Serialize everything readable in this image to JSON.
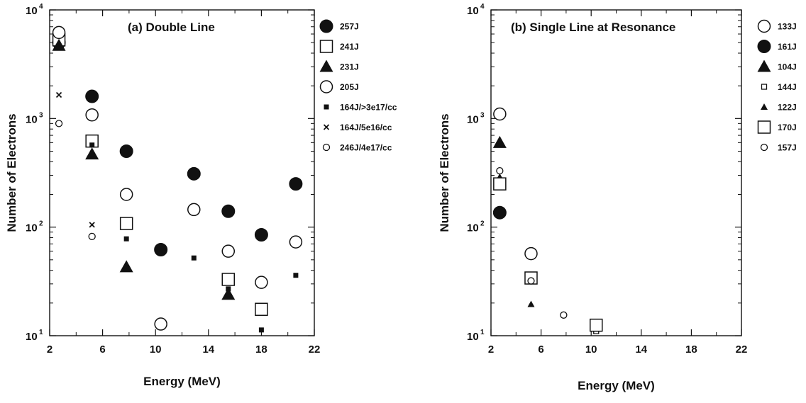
{
  "chart_data": [
    {
      "type": "scatter",
      "title": "(a) Double Line",
      "xlabel": "Energy (MeV)",
      "ylabel": "Number of Electrons",
      "xlim": [
        2,
        22
      ],
      "ylim": [
        10,
        10000
      ],
      "yscale": "log",
      "xticks": [
        "2",
        "6",
        "10",
        "14",
        "18",
        "22"
      ],
      "yticks": [
        {
          "base": "10",
          "exp": "1"
        },
        {
          "base": "10",
          "exp": "2"
        },
        {
          "base": "10",
          "exp": "3"
        },
        {
          "base": "10",
          "exp": "4"
        }
      ],
      "grid": false,
      "legend_position": "right",
      "series": [
        {
          "name": "257J",
          "marker": "filled-circle",
          "points": [
            [
              2.7,
              5000
            ],
            [
              5.2,
              1600
            ],
            [
              7.8,
              500
            ],
            [
              10.4,
              62
            ],
            [
              12.9,
              310
            ],
            [
              15.5,
              140
            ],
            [
              18.0,
              85
            ],
            [
              20.6,
              250
            ]
          ]
        },
        {
          "name": "241J",
          "marker": "open-square",
          "points": [
            [
              2.7,
              5300
            ],
            [
              5.2,
              620
            ],
            [
              7.8,
              108
            ],
            [
              15.5,
              33
            ],
            [
              18.0,
              17.5
            ]
          ]
        },
        {
          "name": "231J",
          "marker": "filled-triangle",
          "points": [
            [
              2.7,
              4700
            ],
            [
              5.2,
              470
            ],
            [
              7.8,
              43
            ],
            [
              15.5,
              24
            ]
          ]
        },
        {
          "name": "205J",
          "marker": "open-circle",
          "points": [
            [
              2.7,
              6200
            ],
            [
              5.2,
              1080
            ],
            [
              7.8,
              200
            ],
            [
              10.4,
              12.8
            ],
            [
              12.9,
              145
            ],
            [
              15.5,
              60
            ],
            [
              18.0,
              31
            ],
            [
              20.6,
              73
            ]
          ]
        },
        {
          "name": "164J/>3e17/cc",
          "marker": "small-filled-square",
          "points": [
            [
              5.2,
              570
            ],
            [
              7.8,
              78
            ],
            [
              12.9,
              52
            ],
            [
              15.5,
              27
            ],
            [
              18.0,
              11.3
            ],
            [
              20.6,
              36
            ]
          ]
        },
        {
          "name": "164J/5e16/cc",
          "marker": "cross",
          "points": [
            [
              2.7,
              1650
            ],
            [
              5.2,
              105
            ]
          ]
        },
        {
          "name": "246J/4e17/cc",
          "marker": "small-open-circle",
          "points": [
            [
              2.7,
              900
            ],
            [
              5.2,
              82
            ]
          ]
        }
      ]
    },
    {
      "type": "scatter",
      "title": "(b) Single Line at Resonance",
      "xlabel": "Energy (MeV)",
      "ylabel": "Number of Electrons",
      "xlim": [
        2,
        22
      ],
      "ylim": [
        10,
        10000
      ],
      "yscale": "log",
      "xticks": [
        "2",
        "6",
        "10",
        "14",
        "18",
        "22"
      ],
      "yticks": [
        {
          "base": "10",
          "exp": "1"
        },
        {
          "base": "10",
          "exp": "2"
        },
        {
          "base": "10",
          "exp": "3"
        },
        {
          "base": "10",
          "exp": "4"
        }
      ],
      "grid": false,
      "legend_position": "right",
      "series": [
        {
          "name": "133J",
          "marker": "open-circle",
          "points": [
            [
              2.7,
              1100
            ],
            [
              5.2,
              57
            ]
          ]
        },
        {
          "name": "161J",
          "marker": "filled-circle",
          "points": [
            [
              2.7,
              136
            ]
          ]
        },
        {
          "name": "104J",
          "marker": "filled-triangle",
          "points": [
            [
              2.7,
              600
            ]
          ]
        },
        {
          "name": "144J",
          "marker": "small-open-square",
          "points": [
            [
              10.4,
              11
            ]
          ]
        },
        {
          "name": "122J",
          "marker": "small-filled-triangle",
          "points": [
            [
              2.7,
              290
            ],
            [
              5.2,
              19.5
            ]
          ]
        },
        {
          "name": "170J",
          "marker": "open-square",
          "points": [
            [
              2.7,
              250
            ],
            [
              5.2,
              34
            ],
            [
              10.4,
              12.5
            ]
          ]
        },
        {
          "name": "157J",
          "marker": "small-open-circle",
          "points": [
            [
              2.7,
              330
            ],
            [
              5.2,
              32
            ],
            [
              7.8,
              15.5
            ]
          ]
        }
      ]
    }
  ]
}
